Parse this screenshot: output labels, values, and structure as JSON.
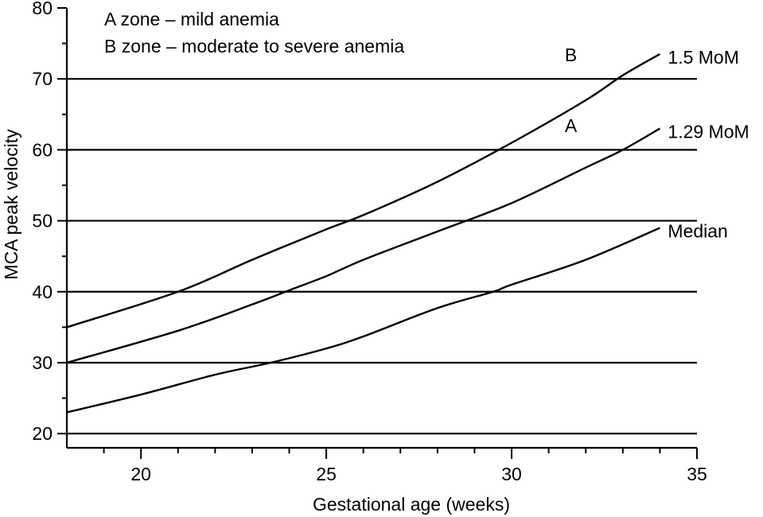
{
  "chart_data": {
    "type": "line",
    "xlabel": "Gestational age (weeks)",
    "ylabel": "MCA peak velocity",
    "xlim": [
      18,
      35
    ],
    "ylim": [
      18,
      80
    ],
    "x_ticks": [
      20,
      25,
      30,
      35
    ],
    "y_ticks": [
      20,
      30,
      40,
      50,
      60,
      70,
      80
    ],
    "grid_y": [
      20,
      30,
      40,
      50,
      60,
      70
    ],
    "legend": [
      "A zone – mild anemia",
      "B zone – moderate to severe anemia"
    ],
    "legend_placement": "top-left",
    "zone_labels": [
      {
        "text": "B",
        "x": 31.6,
        "y": 73.5
      },
      {
        "text": "A",
        "x": 31.6,
        "y": 63.5
      }
    ],
    "series": [
      {
        "name": "1.5 MoM",
        "x": [
          18,
          21,
          23,
          25,
          26,
          28,
          30,
          32,
          33,
          34
        ],
        "y": [
          35,
          40,
          44.5,
          48.8,
          50.8,
          55.5,
          61,
          67,
          70.5,
          73.5
        ]
      },
      {
        "name": "1.29 MoM",
        "x": [
          18,
          21,
          23,
          24,
          25,
          26,
          28,
          30,
          32,
          33,
          34
        ],
        "y": [
          30,
          34.5,
          38.2,
          40.2,
          42.2,
          44.5,
          48.5,
          52.5,
          57.5,
          60,
          63
        ]
      },
      {
        "name": "Median",
        "x": [
          18,
          20,
          22,
          23.5,
          25,
          26,
          28,
          29.5,
          30,
          32,
          34
        ],
        "y": [
          23,
          25.5,
          28.3,
          30,
          32,
          33.7,
          37.7,
          40,
          41,
          44.5,
          49
        ]
      }
    ]
  }
}
